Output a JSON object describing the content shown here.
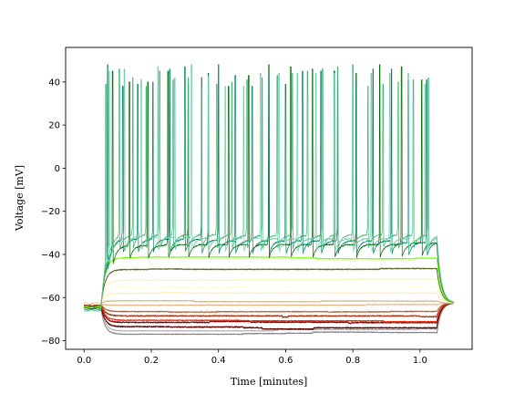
{
  "chart_data": {
    "type": "line",
    "title": "",
    "xlabel": "Time [minutes]",
    "ylabel": "Voltage [mV]",
    "xlim": [
      -0.055,
      1.155
    ],
    "ylim": [
      -84,
      56
    ],
    "xticks": [
      0.0,
      0.2,
      0.4,
      0.6,
      0.8,
      1.0
    ],
    "xtick_labels": [
      "0.0",
      "0.2",
      "0.4",
      "0.6",
      "0.8",
      "1.0"
    ],
    "yticks": [
      -80,
      -60,
      -40,
      -20,
      0,
      20,
      40
    ],
    "ytick_labels": [
      "−80",
      "−60",
      "−40",
      "−20",
      "0",
      "20",
      "40"
    ],
    "grid": false,
    "legend": "none",
    "stimulus": {
      "onset": 0.05,
      "offset": 1.05,
      "end": 1.1,
      "rest": -64
    },
    "series": [
      {
        "color": "#808080",
        "baseline": -65,
        "plateau": -77,
        "tau": 0.012,
        "noise": 0.3,
        "drift": 0.5
      },
      {
        "color": "#b0b0b0",
        "baseline": -64,
        "plateau": -75.5,
        "tau": 0.012,
        "noise": 0.3,
        "drift": 0.4
      },
      {
        "color": "#5a0000",
        "baseline": -64,
        "plateau": -73.5,
        "tau": 0.012,
        "noise": 0.5,
        "drift": 0.6
      },
      {
        "color": "#8b0000",
        "baseline": -63.5,
        "plateau": -71.5,
        "tau": 0.012,
        "noise": 0.5,
        "drift": 0.6
      },
      {
        "color": "#e03010",
        "baseline": -63,
        "plateau": -70.5,
        "tau": 0.012,
        "noise": 0.4,
        "drift": 0.5
      },
      {
        "color": "#a03010",
        "baseline": -63,
        "plateau": -68.5,
        "tau": 0.012,
        "noise": 0.5,
        "drift": 0.6
      },
      {
        "color": "#c06030",
        "baseline": -63,
        "plateau": -66.5,
        "tau": 0.012,
        "noise": 0.4,
        "drift": 0.5
      },
      {
        "color": "#f0b080",
        "baseline": -63,
        "plateau": -63.5,
        "tau": 0.012,
        "noise": 0.3,
        "drift": 0.3
      },
      {
        "color": "#d2b48c",
        "baseline": -62.5,
        "plateau": -61.5,
        "tau": 0.012,
        "noise": 0.3,
        "drift": 0.4
      },
      {
        "color": "#fff0b0",
        "baseline": -62.5,
        "plateau": -58,
        "tau": 0.012,
        "noise": 0.3,
        "drift": 0.3
      },
      {
        "color": "#fff8dc",
        "baseline": -62.5,
        "plateau": -55,
        "tau": 0.012,
        "noise": 0.3,
        "drift": 0.3
      },
      {
        "color": "#f5f5c0",
        "baseline": -63,
        "plateau": -52,
        "tau": 0.012,
        "noise": 0.3,
        "drift": 0.3
      },
      {
        "color": "#556b2f",
        "baseline": -64,
        "plateau": -47,
        "tau": 0.012,
        "noise": 0.4,
        "drift": 0.7
      },
      {
        "color": "#7cfc00",
        "baseline": -64.5,
        "plateau": -41.5,
        "tau": 0.012,
        "noise": 0.3,
        "drift": 0.4
      },
      {
        "color": "#006400",
        "baseline": -65,
        "plateau": -36,
        "tau": 0.015,
        "noise": 0.5,
        "drift": 0.6,
        "spike_times": [
          0.085,
          0.135,
          0.19,
          0.25,
          0.31,
          0.37,
          0.43,
          0.49,
          0.55,
          0.615,
          0.68,
          0.745,
          0.81,
          0.88,
          0.945,
          1.005
        ]
      },
      {
        "color": "#008060",
        "baseline": -65.5,
        "plateau": -33,
        "tau": 0.015,
        "noise": 0.5,
        "drift": 0.5,
        "spike_times": [
          0.07,
          0.115,
          0.16,
          0.205,
          0.255,
          0.3,
          0.35,
          0.4,
          0.45,
          0.5,
          0.55,
          0.6,
          0.65,
          0.705,
          0.755,
          0.81,
          0.86,
          0.915,
          0.965,
          1.02
        ]
      },
      {
        "color": "#3cb371",
        "baseline": -66,
        "plateau": -31,
        "tau": 0.015,
        "noise": 0.5,
        "drift": 0.5,
        "spike_times": [
          0.065,
          0.105,
          0.145,
          0.185,
          0.225,
          0.265,
          0.31,
          0.35,
          0.395,
          0.44,
          0.485,
          0.53,
          0.575,
          0.62,
          0.665,
          0.71,
          0.755,
          0.8,
          0.845,
          0.89,
          0.935,
          0.98,
          1.025
        ]
      },
      {
        "color": "#66cdaa",
        "baseline": -66,
        "plateau": -32,
        "tau": 0.015,
        "noise": 0.5,
        "drift": 0.5,
        "spike_times": [
          0.075,
          0.12,
          0.17,
          0.22,
          0.27,
          0.32,
          0.37,
          0.42,
          0.475,
          0.525,
          0.58,
          0.635,
          0.69,
          0.745,
          0.8,
          0.855,
          0.91,
          0.965,
          1.015
        ]
      }
    ]
  }
}
